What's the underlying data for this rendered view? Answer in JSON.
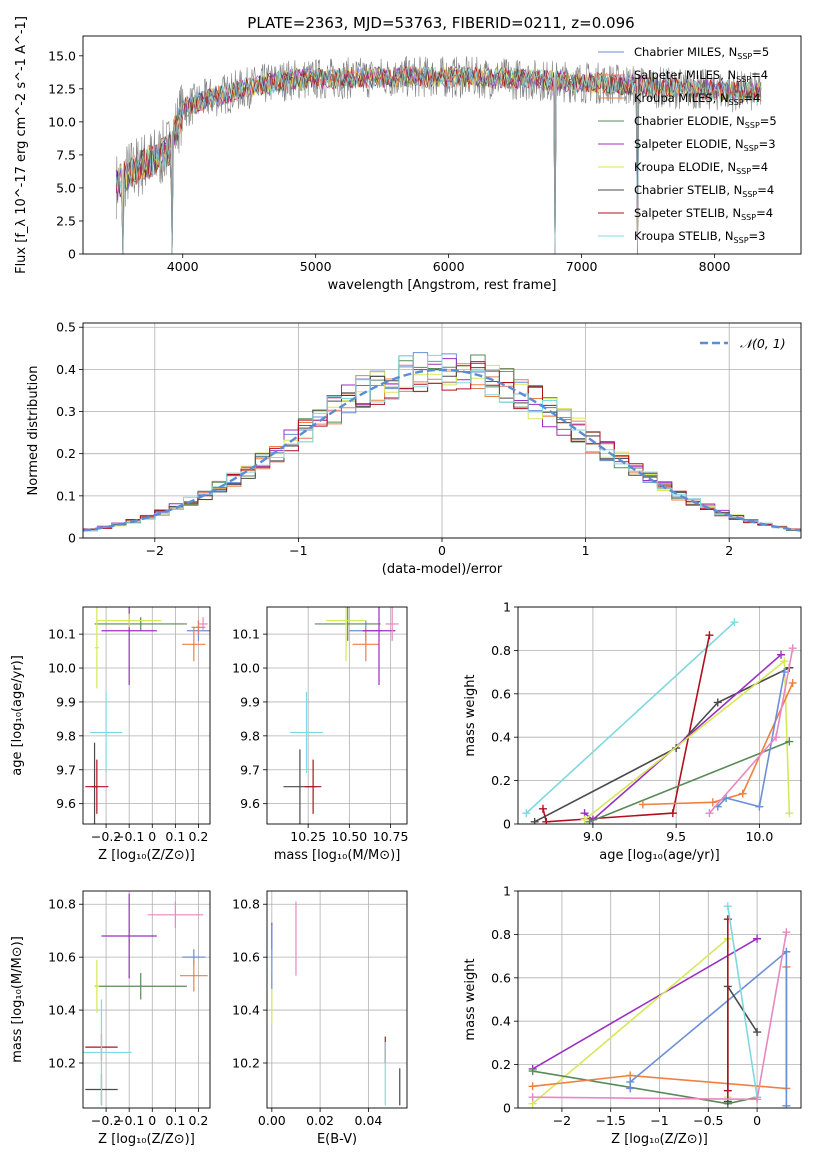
{
  "figure": {
    "title": "PLATE=2363, MJD=53763, FIBERID=0211, z=0.096"
  },
  "model_colors": {
    "Chabrier MILES": "#6a8fd6",
    "Salpeter MILES": "#e07a5f",
    "Kroupa MILES": "#f08040",
    "Chabrier ELODIE": "#5a8a5a",
    "Salpeter ELODIE": "#9b30c0",
    "Kroupa ELODIE": "#d6e85a",
    "Chabrier STELIB": "#4a4a4a",
    "Salpeter STELIB": "#b01020",
    "Kroupa STELIB": "#80d8e0",
    "data": "#808080",
    "extra_pink": "#e888c0",
    "normal_curve": "#5b8cd6"
  },
  "chart_data": [
    {
      "id": "spectrum",
      "type": "line",
      "title": "PLATE=2363, MJD=53763, FIBERID=0211, z=0.096",
      "xlabel": "wavelength [Angstrom, rest frame]",
      "ylabel": "Flux [f_λ 10^-17 erg cm^-2 s^-1 A^-1]",
      "xlim": [
        3250,
        8650
      ],
      "ylim": [
        0,
        16.5
      ],
      "xticks": [
        4000,
        5000,
        6000,
        7000,
        8000
      ],
      "yticks": [
        0.0,
        2.5,
        5.0,
        7.5,
        10.0,
        12.5,
        15.0
      ],
      "grid": false,
      "legend_position": "top-right",
      "legend": [
        {
          "label": "Chabrier MILES, N",
          "sub": "SSP",
          "suffix": "=5",
          "color": "#6a8fd6"
        },
        {
          "label": "Salpeter MILES, N",
          "sub": "SSP",
          "suffix": "=4",
          "color": "#e07a5f"
        },
        {
          "label": "Kroupa MILES, N",
          "sub": "SSP",
          "suffix": "=4",
          "color": "#f08040"
        },
        {
          "label": "Chabrier ELODIE, N",
          "sub": "SSP",
          "suffix": "=5",
          "color": "#5a8a5a"
        },
        {
          "label": "Salpeter ELODIE, N",
          "sub": "SSP",
          "suffix": "=3",
          "color": "#9b30c0"
        },
        {
          "label": "Kroupa ELODIE, N",
          "sub": "SSP",
          "suffix": "=4",
          "color": "#d6e85a"
        },
        {
          "label": "Chabrier STELIB, N",
          "sub": "SSP",
          "suffix": "=4",
          "color": "#4a4a4a"
        },
        {
          "label": "Salpeter STELIB, N",
          "sub": "SSP",
          "suffix": "=4",
          "color": "#b01020"
        },
        {
          "label": "Kroupa STELIB, N",
          "sub": "SSP",
          "suffix": "=3",
          "color": "#80d8e0"
        }
      ],
      "continuum_points": [
        {
          "x": 3500,
          "y": 5.2
        },
        {
          "x": 3600,
          "y": 6.2
        },
        {
          "x": 3700,
          "y": 6.8
        },
        {
          "x": 3800,
          "y": 7.2
        },
        {
          "x": 3900,
          "y": 8.0
        },
        {
          "x": 4000,
          "y": 11.0
        },
        {
          "x": 4200,
          "y": 11.8
        },
        {
          "x": 4500,
          "y": 12.6
        },
        {
          "x": 4800,
          "y": 13.2
        },
        {
          "x": 5200,
          "y": 13.3
        },
        {
          "x": 5600,
          "y": 13.4
        },
        {
          "x": 6000,
          "y": 13.4
        },
        {
          "x": 6400,
          "y": 13.3
        },
        {
          "x": 6800,
          "y": 13.1
        },
        {
          "x": 7200,
          "y": 12.9
        },
        {
          "x": 7600,
          "y": 12.6
        },
        {
          "x": 8000,
          "y": 12.4
        },
        {
          "x": 8350,
          "y": 12.2
        }
      ],
      "notable_dips": [
        {
          "x": 3550,
          "y": 0.0
        },
        {
          "x": 3920,
          "y": 0.0
        },
        {
          "x": 6800,
          "y": 0.0
        },
        {
          "x": 7420,
          "y": 0.0
        }
      ]
    },
    {
      "id": "residuals",
      "type": "histogram",
      "xlabel": "(data-model)/error",
      "ylabel": "Normed distribution",
      "xlim": [
        -2.5,
        2.5
      ],
      "ylim": [
        0,
        0.51
      ],
      "xticks": [
        -2,
        -1,
        0,
        1,
        2
      ],
      "yticks": [
        0.0,
        0.1,
        0.2,
        0.3,
        0.4,
        0.5
      ],
      "grid": true,
      "bin_width": 0.1,
      "legend_position": "top-right",
      "legend": [
        {
          "label": "𝒩(0, 1)",
          "color": "#5b8cd6",
          "style": "dashed"
        }
      ],
      "curve": {
        "name": "𝒩(0, 1)",
        "mean": 0,
        "sigma": 1
      }
    },
    {
      "id": "age-vs-Z",
      "type": "scatter",
      "xlabel": "Z [log₁₀(Z/Z⊙)]",
      "ylabel": "age  [log₁₀(age/yr)]",
      "xlim": [
        -0.3,
        0.25
      ],
      "ylim": [
        9.54,
        10.18
      ],
      "xticks": [
        -0.2,
        -0.1,
        0.0,
        0.1,
        0.2
      ],
      "yticks": [
        9.6,
        9.7,
        9.8,
        9.9,
        10.0,
        10.1
      ],
      "grid": true,
      "points": [
        {
          "series": "Chabrier MILES",
          "x": 0.2,
          "y": 10.11,
          "xerr": 0.05,
          "yerr": 0.03
        },
        {
          "series": "Salpeter MILES",
          "x": 0.2,
          "y": 10.12,
          "xerr": 0.03,
          "yerr": 0.02
        },
        {
          "series": "Kroupa MILES",
          "x": 0.18,
          "y": 10.07,
          "xerr": 0.05,
          "yerr": 0.05
        },
        {
          "series": "Chabrier ELODIE",
          "x": -0.05,
          "y": 10.13,
          "xerr": 0.2,
          "yerr": 0.02
        },
        {
          "series": "Salpeter ELODIE",
          "x": -0.1,
          "y": 10.11,
          "xerr": 0.12,
          "yerr": 0.16
        },
        {
          "series": "Kroupa ELODIE",
          "x": -0.1,
          "y": 10.14,
          "xerr": 0.14,
          "yerr": 0.02
        },
        {
          "series": "Kroupa ELODIE b",
          "x": -0.24,
          "y": 10.06,
          "xerr": 0.01,
          "yerr": 0.12
        },
        {
          "series": "Chabrier STELIB",
          "x": -0.25,
          "y": 9.65,
          "xerr": 0.01,
          "yerr": 0.13
        },
        {
          "series": "Salpeter STELIB",
          "x": -0.24,
          "y": 9.65,
          "xerr": 0.05,
          "yerr": 0.08
        },
        {
          "series": "Kroupa STELIB",
          "x": -0.2,
          "y": 9.81,
          "xerr": 0.07,
          "yerr": 0.12
        },
        {
          "series": "extra_pink",
          "x": 0.22,
          "y": 10.13,
          "xerr": 0.02,
          "yerr": 0.02
        }
      ]
    },
    {
      "id": "age-vs-mass",
      "type": "scatter",
      "xlabel": "mass [log₁₀(M/M⊙)]",
      "ylabel": "",
      "xlim": [
        10.0,
        10.85
      ],
      "ylim": [
        9.54,
        10.18
      ],
      "xticks": [
        10.25,
        10.5,
        10.75
      ],
      "xtick_labels": [
        "10.25",
        "10.50",
        "10.75"
      ],
      "yticks": [
        9.6,
        9.7,
        9.8,
        9.9,
        10.0,
        10.1
      ],
      "grid": true,
      "points": [
        {
          "series": "Chabrier MILES",
          "x": 10.6,
          "y": 10.11,
          "xerr": 0.1,
          "yerr": 0.03
        },
        {
          "series": "Kroupa MILES",
          "x": 10.6,
          "y": 10.07,
          "xerr": 0.08,
          "yerr": 0.05
        },
        {
          "series": "Chabrier ELODIE",
          "x": 10.49,
          "y": 10.13,
          "xerr": 0.2,
          "yerr": 0.05
        },
        {
          "series": "Salpeter ELODIE",
          "x": 10.68,
          "y": 10.11,
          "xerr": 0.1,
          "yerr": 0.16
        },
        {
          "series": "Kroupa ELODIE",
          "x": 10.48,
          "y": 10.14,
          "xerr": 0.12,
          "yerr": 0.12
        },
        {
          "series": "Chabrier STELIB",
          "x": 10.2,
          "y": 9.65,
          "xerr": 0.1,
          "yerr": 0.11
        },
        {
          "series": "Salpeter STELIB",
          "x": 10.28,
          "y": 9.65,
          "xerr": 0.05,
          "yerr": 0.08
        },
        {
          "series": "Kroupa STELIB",
          "x": 10.24,
          "y": 9.81,
          "xerr": 0.1,
          "yerr": 0.12
        },
        {
          "series": "extra_pink",
          "x": 10.76,
          "y": 10.13,
          "xerr": 0.04,
          "yerr": 0.05
        }
      ]
    },
    {
      "id": "mass-weight-vs-age",
      "type": "line",
      "xlabel": "age  [log₁₀(age/yr)]",
      "ylabel": "mass weight",
      "xlim": [
        8.55,
        10.25
      ],
      "ylim": [
        0,
        1.0
      ],
      "xticks": [
        9.0,
        9.5,
        10.0
      ],
      "yticks": [
        0.0,
        0.2,
        0.4,
        0.6,
        0.8,
        1.0
      ],
      "grid": true,
      "series": [
        {
          "name": "Kroupa STELIB",
          "color": "#80d8e0",
          "points": [
            [
              8.6,
              0.05
            ],
            [
              9.85,
              0.93
            ]
          ]
        },
        {
          "name": "Salpeter STELIB",
          "color": "#b01020",
          "points": [
            [
              8.7,
              0.07
            ],
            [
              8.72,
              0.01
            ],
            [
              9.48,
              0.05
            ],
            [
              9.7,
              0.87
            ]
          ]
        },
        {
          "name": "Chabrier STELIB",
          "color": "#4a4a4a",
          "points": [
            [
              8.65,
              0.01
            ],
            [
              9.5,
              0.35
            ],
            [
              9.75,
              0.56
            ],
            [
              10.18,
              0.72
            ]
          ]
        },
        {
          "name": "Salpeter ELODIE",
          "color": "#9b30c0",
          "points": [
            [
              8.95,
              0.05
            ],
            [
              9.0,
              0.02
            ],
            [
              10.13,
              0.78
            ]
          ]
        },
        {
          "name": "Kroupa ELODIE",
          "color": "#d6e85a",
          "points": [
            [
              8.95,
              0.02
            ],
            [
              10.15,
              0.75
            ],
            [
              10.18,
              0.05
            ]
          ]
        },
        {
          "name": "Chabrier ELODIE",
          "color": "#5a8a5a",
          "points": [
            [
              8.98,
              0.01
            ],
            [
              10.18,
              0.38
            ]
          ]
        },
        {
          "name": "Kroupa MILES",
          "color": "#f08040",
          "points": [
            [
              9.3,
              0.09
            ],
            [
              9.72,
              0.1
            ],
            [
              9.9,
              0.14
            ],
            [
              10.2,
              0.65
            ]
          ]
        },
        {
          "name": "Chabrier MILES",
          "color": "#6a8fd6",
          "points": [
            [
              9.75,
              0.08
            ],
            [
              9.8,
              0.12
            ],
            [
              10.0,
              0.08
            ],
            [
              10.15,
              0.7
            ]
          ]
        },
        {
          "name": "extra_pink",
          "color": "#e888c0",
          "points": [
            [
              9.7,
              0.05
            ],
            [
              10.1,
              0.4
            ],
            [
              10.2,
              0.81
            ]
          ]
        }
      ]
    },
    {
      "id": "mass-vs-Z",
      "type": "scatter",
      "xlabel": "Z [log₁₀(Z/Z⊙)]",
      "ylabel": "mass [log₁₀(M/M⊙)]",
      "xlim": [
        -0.3,
        0.25
      ],
      "ylim": [
        10.03,
        10.85
      ],
      "xticks": [
        -0.2,
        -0.1,
        0.0,
        0.1,
        0.2
      ],
      "yticks": [
        10.2,
        10.4,
        10.6,
        10.8
      ],
      "grid": true,
      "points": [
        {
          "series": "Chabrier MILES",
          "x": 0.18,
          "y": 10.6,
          "xerr": 0.05,
          "yerr": 0.03
        },
        {
          "series": "Kroupa MILES",
          "x": 0.18,
          "y": 10.53,
          "xerr": 0.06,
          "yerr": 0.06
        },
        {
          "series": "Chabrier ELODIE",
          "x": -0.05,
          "y": 10.49,
          "xerr": 0.2,
          "yerr": 0.05
        },
        {
          "series": "Salpeter ELODIE",
          "x": -0.1,
          "y": 10.68,
          "xerr": 0.12,
          "yerr": 0.16
        },
        {
          "series": "Kroupa ELODIE",
          "x": -0.24,
          "y": 10.49,
          "xerr": 0.01,
          "yerr": 0.1
        },
        {
          "series": "Chabrier STELIB",
          "x": -0.22,
          "y": 10.1,
          "xerr": 0.07,
          "yerr": 0.06
        },
        {
          "series": "Salpeter STELIB",
          "x": -0.22,
          "y": 10.26,
          "xerr": 0.07,
          "yerr": 0.05
        },
        {
          "series": "Kroupa STELIB",
          "x": -0.22,
          "y": 10.24,
          "xerr": 0.13,
          "yerr": 0.2
        },
        {
          "series": "extra_pink",
          "x": 0.1,
          "y": 10.76,
          "xerr": 0.12,
          "yerr": 0.05
        }
      ]
    },
    {
      "id": "mass-vs-EBV",
      "type": "scatter",
      "xlabel": "E(B-V)",
      "ylabel": "",
      "xlim": [
        -0.002,
        0.056
      ],
      "ylim": [
        10.03,
        10.85
      ],
      "xticks": [
        0.0,
        0.02,
        0.04
      ],
      "xtick_labels": [
        "0.00",
        "0.02",
        "0.04"
      ],
      "yticks": [
        10.2,
        10.4,
        10.6,
        10.8
      ],
      "grid": true,
      "points": [
        {
          "series": "Chabrier STELIB",
          "x": 0.053,
          "y": 10.11,
          "xerr": 0,
          "yerr": 0.07
        },
        {
          "series": "Salpeter STELIB",
          "x": 0.047,
          "y": 10.25,
          "xerr": 0,
          "yerr": 0.05
        },
        {
          "series": "Kroupa STELIB",
          "x": 0.047,
          "y": 10.16,
          "xerr": 0,
          "yerr": 0.12
        },
        {
          "series": "extra_pink",
          "x": 0.01,
          "y": 10.67,
          "xerr": 0,
          "yerr": 0.14
        },
        {
          "series": "Salpeter ELODIE",
          "x": 0.0,
          "y": 10.68,
          "xerr": 0,
          "yerr": 0.05
        },
        {
          "series": "Kroupa ELODIE",
          "x": 0.0,
          "y": 10.45,
          "xerr": 0,
          "yerr": 0.1
        },
        {
          "series": "Chabrier MILES",
          "x": 0.0,
          "y": 10.6,
          "xerr": 0,
          "yerr": 0.12
        }
      ]
    },
    {
      "id": "mass-weight-vs-Z",
      "type": "line",
      "xlabel": "Z [log₁₀(Z/Z⊙)]",
      "ylabel": "mass weight",
      "xlim": [
        -2.45,
        0.45
      ],
      "ylim": [
        0,
        1.0
      ],
      "xticks": [
        -2.0,
        -1.5,
        -1.0,
        -0.5,
        0.0
      ],
      "yticks": [
        0.0,
        0.2,
        0.4,
        0.6,
        0.8,
        1.0
      ],
      "grid": true,
      "series": [
        {
          "name": "Salpeter ELODIE",
          "color": "#9b30c0",
          "points": [
            [
              -2.3,
              0.18
            ],
            [
              0.0,
              0.78
            ]
          ]
        },
        {
          "name": "Kroupa ELODIE",
          "color": "#d6e85a",
          "points": [
            [
              -2.3,
              0.02
            ],
            [
              -0.3,
              0.78
            ],
            [
              -0.3,
              0.05
            ]
          ]
        },
        {
          "name": "Chabrier ELODIE",
          "color": "#5a8a5a",
          "points": [
            [
              -2.3,
              0.17
            ],
            [
              -0.3,
              0.02
            ],
            [
              0.0,
              0.05
            ]
          ]
        },
        {
          "name": "Kroupa MILES",
          "color": "#f08040",
          "points": [
            [
              -2.3,
              0.1
            ],
            [
              -1.3,
              0.15
            ],
            [
              0.3,
              0.09
            ],
            [
              0.3,
              0.65
            ]
          ]
        },
        {
          "name": "Chabrier MILES",
          "color": "#6a8fd6",
          "points": [
            [
              -1.3,
              0.09
            ],
            [
              -1.3,
              0.12
            ],
            [
              0.3,
              0.72
            ],
            [
              0.3,
              0.01
            ]
          ]
        },
        {
          "name": "Chabrier STELIB",
          "color": "#4a4a4a",
          "points": [
            [
              -0.3,
              0.03
            ],
            [
              -0.3,
              0.56
            ],
            [
              0.0,
              0.35
            ]
          ]
        },
        {
          "name": "Salpeter STELIB",
          "color": "#b01020",
          "points": [
            [
              -0.3,
              0.87
            ],
            [
              -0.3,
              0.08
            ]
          ]
        },
        {
          "name": "Kroupa STELIB",
          "color": "#80d8e0",
          "points": [
            [
              -0.3,
              0.93
            ],
            [
              0.0,
              0.05
            ]
          ]
        },
        {
          "name": "extra_pink",
          "color": "#e888c0",
          "points": [
            [
              -2.3,
              0.05
            ],
            [
              0.0,
              0.04
            ],
            [
              0.3,
              0.81
            ]
          ]
        }
      ]
    }
  ]
}
